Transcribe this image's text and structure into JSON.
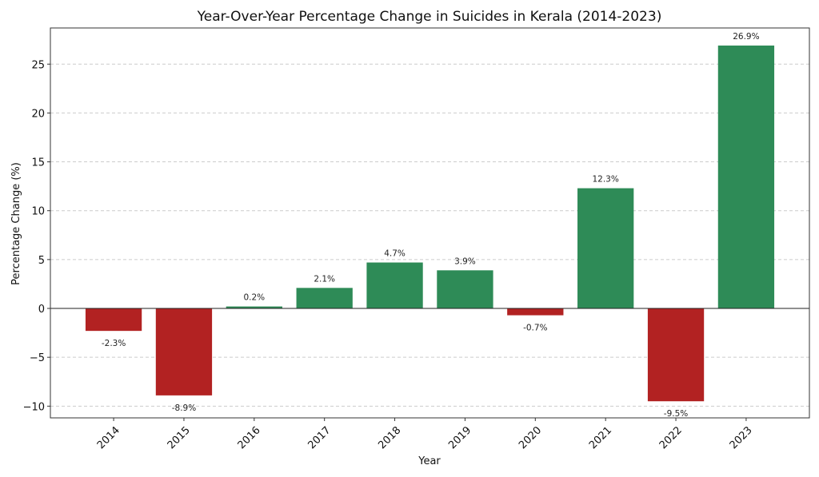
{
  "chart_data": {
    "type": "bar",
    "title": "Year-Over-Year Percentage Change in Suicides in Kerala (2014-2023)",
    "xlabel": "Year",
    "ylabel": "Percentage Change (%)",
    "categories": [
      "2014",
      "2015",
      "2016",
      "2017",
      "2018",
      "2019",
      "2020",
      "2021",
      "2022",
      "2023"
    ],
    "values": [
      -2.3,
      -8.9,
      0.2,
      2.1,
      4.7,
      3.9,
      -0.7,
      12.3,
      -9.5,
      26.9
    ],
    "data_labels": [
      "-2.3%",
      "-8.9%",
      "0.2%",
      "2.1%",
      "4.7%",
      "3.9%",
      "-0.7%",
      "12.3%",
      "-9.5%",
      "26.9%"
    ],
    "ylim": [
      -11.2,
      28.7
    ],
    "yticks": [
      -10,
      -5,
      0,
      5,
      10,
      15,
      20,
      25
    ],
    "grid": "y-dashed",
    "colors": {
      "positive": "#2e8b57",
      "negative": "#b22222"
    }
  }
}
